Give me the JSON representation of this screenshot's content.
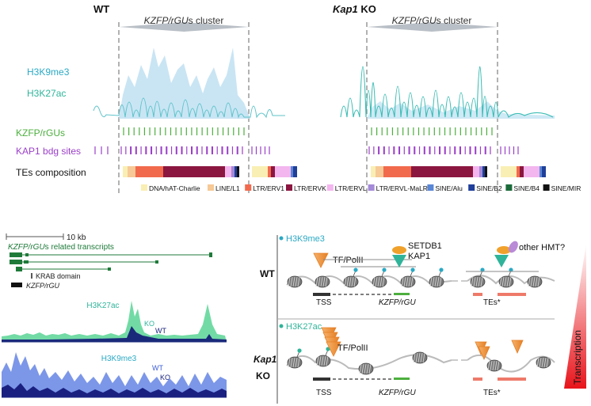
{
  "panel_a": {
    "wt_title": "WT",
    "ko_title_gene": "Kap1",
    "ko_title_suffix": " KO",
    "cluster_label_italic": "KZFP/rGU",
    "cluster_label_rest": "s cluster",
    "track_labels": {
      "h3k9me3": "H3K9me3",
      "h3k27ac": "H3K27ac",
      "kzfp_rgus": "KZFP/rGUs",
      "kap1_bdg": "KAP1 bdg sites",
      "tes": "TEs composition"
    },
    "legend": [
      {
        "label": "DNA/hAT-Charlie",
        "color": "#f9efb4"
      },
      {
        "label": "LINE/L1",
        "color": "#f6c996"
      },
      {
        "label": "LTR/ERV1",
        "color": "#f26a4d"
      },
      {
        "label": "LTR/ERVK",
        "color": "#8b1640"
      },
      {
        "label": "LTR/ERVL",
        "color": "#f3b6ee"
      },
      {
        "label": "LTR/ERVL-MaLR",
        "color": "#a48ad8"
      },
      {
        "label": "SINE/Alu",
        "color": "#5a86d6"
      },
      {
        "label": "SINE/B2",
        "color": "#1f3f9a"
      },
      {
        "label": "SINE/B4",
        "color": "#1b6b3a"
      },
      {
        "label": "SINE/MIR",
        "color": "#111111"
      }
    ],
    "colors": {
      "h3k9me3": "#2aa9c4",
      "h3k27ac": "#2fb49a",
      "kzfp": "#4caf3e",
      "kap1": "#9b3fc9"
    }
  },
  "panel_b": {
    "scale_label": "10 kb",
    "transcripts_italic": "KZFP/rGU",
    "transcripts_rest": "s related transcripts",
    "krab_label": "KRAB domain",
    "kzfp_rgu_label": "KZFP/rGU",
    "h3k27ac_label": "H3K27ac",
    "ko_label": "KO",
    "wt_label": "WT",
    "h3k9me3_label": "H3K9me3",
    "wt_label_2": "WT",
    "ko_label_2": "KO"
  },
  "panel_c": {
    "wt_row_label": "WT",
    "ko_row_gene": "Kap1",
    "ko_row_suffix": "KO",
    "h3k9me3_mark": "H3K9me3",
    "h3k27ac_mark": "H3K27ac",
    "tf_polii": "TF/PolII",
    "tf_polii_2": "TF/PolII",
    "setdb1": "SETDB1",
    "kap1": "KAP1",
    "other_hmt": "other HMT?",
    "tss": "TSS",
    "tss_2": "TSS",
    "kzfp_rgu": "KZFP/rGU",
    "kzfp_rgu_2": "KZFP/rGU",
    "tes": "TEs*",
    "tes_2": "TEs*",
    "transcription": "Transcription"
  }
}
